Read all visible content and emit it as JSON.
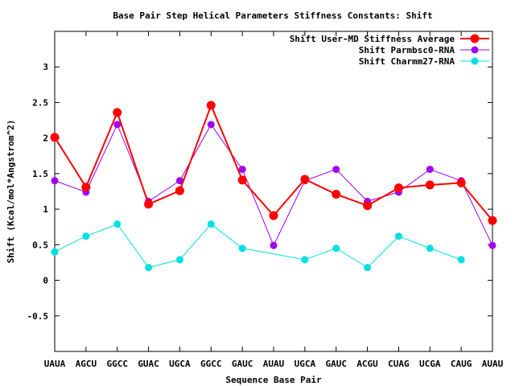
{
  "chart_data": {
    "type": "line",
    "title": "Base Pair Step Helical Parameters Stiffness Constants: Shift",
    "xlabel": "Sequence Base Pair",
    "ylabel": "Shift (Kcal/mol*Angstrom^2)",
    "ylim": [
      -1,
      3.5
    ],
    "yticks": [
      -0.5,
      0,
      0.5,
      1,
      1.5,
      2,
      2.5,
      3
    ],
    "grid": false,
    "legend": "top-right",
    "categories": [
      "UAUA",
      "AGCU",
      "GGCC",
      "GUAC",
      "UGCA",
      "GGCC",
      "GAUC",
      "AUAU",
      "UGCA",
      "GAUC",
      "ACGU",
      "CUAG",
      "UCGA",
      "CAUG",
      "AUAU"
    ],
    "series": [
      {
        "name": "Shift User-MD Stiffness Average",
        "color": "#ff0000",
        "values": [
          2.01,
          1.31,
          2.36,
          1.07,
          1.26,
          2.46,
          1.41,
          0.91,
          1.42,
          1.21,
          1.05,
          1.3,
          1.34,
          1.37,
          0.84
        ]
      },
      {
        "name": "Shift Parmbsc0-RNA",
        "color": "#a000f0",
        "values": [
          1.4,
          1.24,
          2.19,
          1.11,
          1.4,
          2.19,
          1.56,
          0.49,
          1.4,
          1.56,
          1.11,
          1.24,
          1.56,
          1.4,
          0.49
        ]
      },
      {
        "name": "Shift Charmm27-RNA",
        "color": "#00e0e0",
        "values": [
          0.4,
          0.62,
          0.79,
          0.18,
          0.29,
          0.79,
          0.45,
          null,
          0.29,
          0.45,
          0.18,
          0.62,
          0.45,
          0.29,
          null
        ]
      }
    ]
  }
}
